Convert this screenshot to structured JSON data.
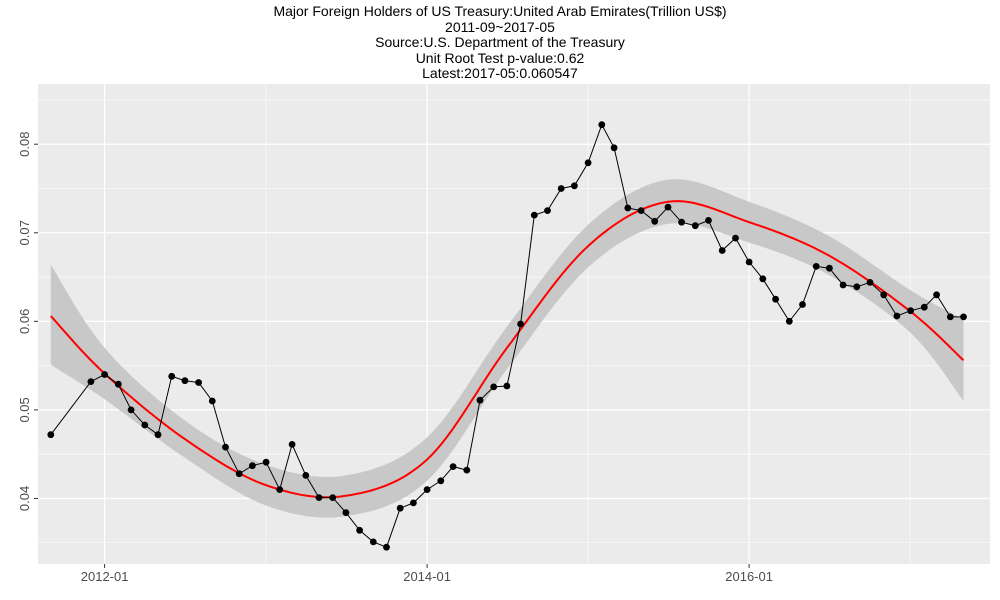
{
  "title_lines": [
    "Major Foreign Holders of US Treasury:United Arab Emirates(Trillion US$)",
    "2011-09~2017-05",
    "Source:U.S. Department of the Treasury",
    "Unit Root Test p-value:0.62",
    "Latest:2017-05:0.060547"
  ],
  "chart_data": {
    "type": "line",
    "title": "Major Foreign Holders of US Treasury:United Arab Emirates(Trillion US$)",
    "xlabel": "",
    "ylabel": "",
    "x_ticks": [
      "2012-01",
      "2014-01",
      "2016-01"
    ],
    "y_ticks": [
      0.04,
      0.05,
      0.06,
      0.07,
      0.08
    ],
    "xlim": [
      "2011-08-03",
      "2017-06-30"
    ],
    "ylim": [
      0.0326,
      0.0868
    ],
    "grid": true,
    "colors": {
      "panel": "#ebebeb",
      "grid": "#ffffff",
      "series": "#000000",
      "smooth": "#ff0000",
      "band": "#c8c8c8"
    },
    "series": [
      {
        "kind": "observed",
        "points": [
          [
            "2011-09",
            0.0472
          ],
          [
            "2011-12",
            0.0532
          ],
          [
            "2012-01",
            0.054
          ],
          [
            "2012-02",
            0.0529
          ],
          [
            "2012-03",
            0.05
          ],
          [
            "2012-04",
            0.0483
          ],
          [
            "2012-05",
            0.0472
          ],
          [
            "2012-06",
            0.0538
          ],
          [
            "2012-07",
            0.0533
          ],
          [
            "2012-08",
            0.0531
          ],
          [
            "2012-09",
            0.051
          ],
          [
            "2012-10",
            0.0458
          ],
          [
            "2012-11",
            0.0428
          ],
          [
            "2012-12",
            0.0437
          ],
          [
            "2013-01",
            0.0441
          ],
          [
            "2013-02",
            0.041
          ],
          [
            "2013-03",
            0.0461
          ],
          [
            "2013-04",
            0.0426
          ],
          [
            "2013-05",
            0.0401
          ],
          [
            "2013-06",
            0.0401
          ],
          [
            "2013-07",
            0.0384
          ],
          [
            "2013-08",
            0.0364
          ],
          [
            "2013-09",
            0.0351
          ],
          [
            "2013-10",
            0.0345
          ],
          [
            "2013-11",
            0.0389
          ],
          [
            "2013-12",
            0.0395
          ],
          [
            "2014-01",
            0.041
          ],
          [
            "2014-02",
            0.042
          ],
          [
            "2014-03",
            0.0436
          ],
          [
            "2014-04",
            0.0432
          ],
          [
            "2014-05",
            0.0511
          ],
          [
            "2014-06",
            0.0526
          ],
          [
            "2014-07",
            0.0527
          ],
          [
            "2014-08",
            0.0597
          ],
          [
            "2014-09",
            0.072
          ],
          [
            "2014-10",
            0.0725
          ],
          [
            "2014-11",
            0.075
          ],
          [
            "2014-12",
            0.0753
          ],
          [
            "2015-01",
            0.0779
          ],
          [
            "2015-02",
            0.0822
          ],
          [
            "2015-03",
            0.0796
          ],
          [
            "2015-04",
            0.0728
          ],
          [
            "2015-05",
            0.0725
          ],
          [
            "2015-06",
            0.0713
          ],
          [
            "2015-07",
            0.0729
          ],
          [
            "2015-08",
            0.0712
          ],
          [
            "2015-09",
            0.0708
          ],
          [
            "2015-10",
            0.0714
          ],
          [
            "2015-11",
            0.068
          ],
          [
            "2015-12",
            0.0694
          ],
          [
            "2016-01",
            0.0667
          ],
          [
            "2016-02",
            0.0648
          ],
          [
            "2016-03",
            0.0625
          ],
          [
            "2016-04",
            0.06
          ],
          [
            "2016-05",
            0.0619
          ],
          [
            "2016-06",
            0.0662
          ],
          [
            "2016-07",
            0.066
          ],
          [
            "2016-08",
            0.0641
          ],
          [
            "2016-09",
            0.0639
          ],
          [
            "2016-10",
            0.0644
          ],
          [
            "2016-11",
            0.063
          ],
          [
            "2016-12",
            0.0606
          ],
          [
            "2017-01",
            0.0612
          ],
          [
            "2017-02",
            0.0616
          ],
          [
            "2017-03",
            0.063
          ],
          [
            "2017-04",
            0.0605
          ],
          [
            "2017-05",
            0.0605
          ]
        ]
      },
      {
        "kind": "smooth",
        "points": [
          [
            "2011-09",
            0.0606,
            0.0551,
            0.0664
          ],
          [
            "2012-01",
            0.0541,
            0.0512,
            0.057
          ],
          [
            "2012-07",
            0.0467,
            0.0446,
            0.0488
          ],
          [
            "2013-01",
            0.0415,
            0.0392,
            0.0438
          ],
          [
            "2013-07",
            0.0403,
            0.038,
            0.0426
          ],
          [
            "2014-01",
            0.0444,
            0.042,
            0.0469
          ],
          [
            "2014-07",
            0.057,
            0.0546,
            0.0594
          ],
          [
            "2015-01",
            0.0685,
            0.0661,
            0.0709
          ],
          [
            "2015-07",
            0.0735,
            0.071,
            0.076
          ],
          [
            "2016-01",
            0.0712,
            0.0689,
            0.0735
          ],
          [
            "2016-07",
            0.0674,
            0.0652,
            0.0696
          ],
          [
            "2017-01",
            0.0611,
            0.0587,
            0.0635
          ],
          [
            "2017-05",
            0.0556,
            0.051,
            0.0602
          ]
        ]
      }
    ]
  }
}
